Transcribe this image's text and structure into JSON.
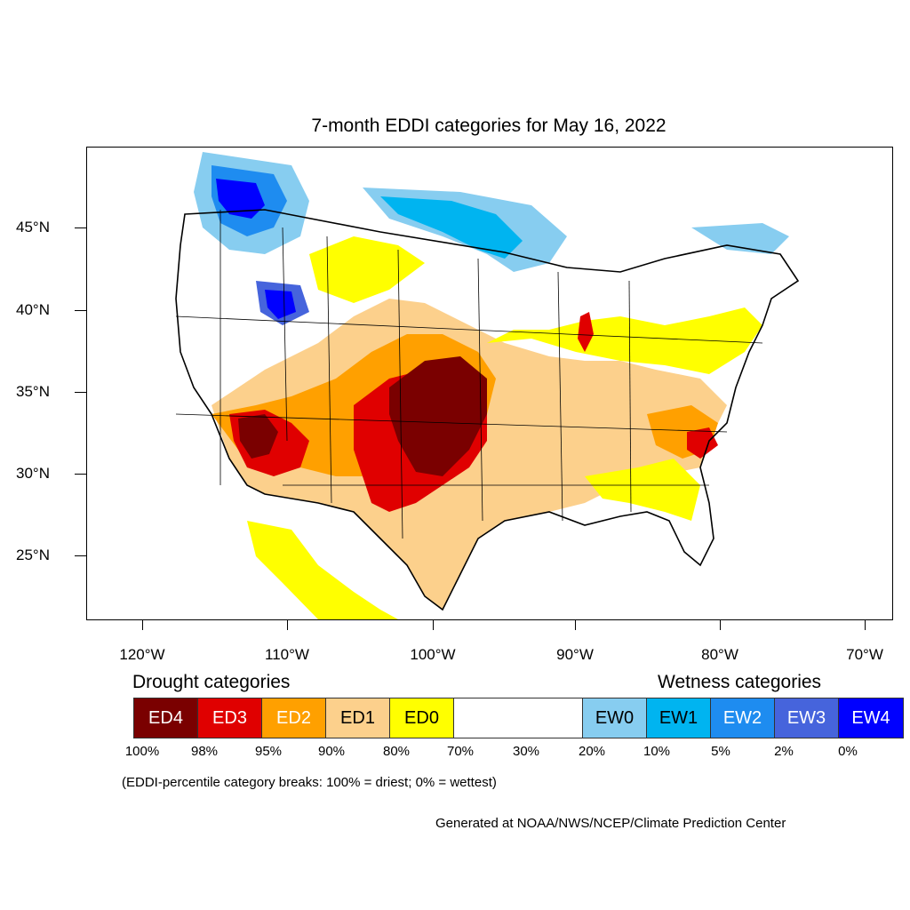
{
  "title": "7-month EDDI categories for May 16, 2022",
  "map": {
    "lat_ticks": [
      "45°N",
      "40°N",
      "35°N",
      "30°N",
      "25°N"
    ],
    "lon_ticks": [
      "120°W",
      "110°W",
      "100°W",
      "90°W",
      "80°W",
      "70°W"
    ]
  },
  "legend": {
    "drought_title": "Drought categories",
    "wetness_title": "Wetness categories",
    "categories": [
      {
        "label": "ED4",
        "color": "#7a0000",
        "text_color": "#ffffff"
      },
      {
        "label": "ED3",
        "color": "#e00000",
        "text_color": "#ffffff"
      },
      {
        "label": "ED2",
        "color": "#ffa000",
        "text_color": "#ffffff"
      },
      {
        "label": "ED1",
        "color": "#fcd08c",
        "text_color": "#000000"
      },
      {
        "label": "ED0",
        "color": "#ffff00",
        "text_color": "#000000"
      },
      {
        "label": "",
        "color": "#ffffff",
        "text_color": "#000000"
      },
      {
        "label": "EW0",
        "color": "#87cdf0",
        "text_color": "#000000"
      },
      {
        "label": "EW1",
        "color": "#00b4f0",
        "text_color": "#000000"
      },
      {
        "label": "EW2",
        "color": "#1e8cf0",
        "text_color": "#ffffff"
      },
      {
        "label": "EW3",
        "color": "#4664dc",
        "text_color": "#ffffff"
      },
      {
        "label": "EW4",
        "color": "#0000ff",
        "text_color": "#ffffff"
      }
    ],
    "percentiles": [
      "100%",
      "98%",
      "95%",
      "90%",
      "80%",
      "70%",
      "30%",
      "20%",
      "10%",
      "5%",
      "2%",
      "0%"
    ]
  },
  "note": "(EDDI-percentile category breaks: 100% = driest; 0% = wettest)",
  "credit": "Generated at NOAA/NWS/NCEP/Climate Prediction Center"
}
